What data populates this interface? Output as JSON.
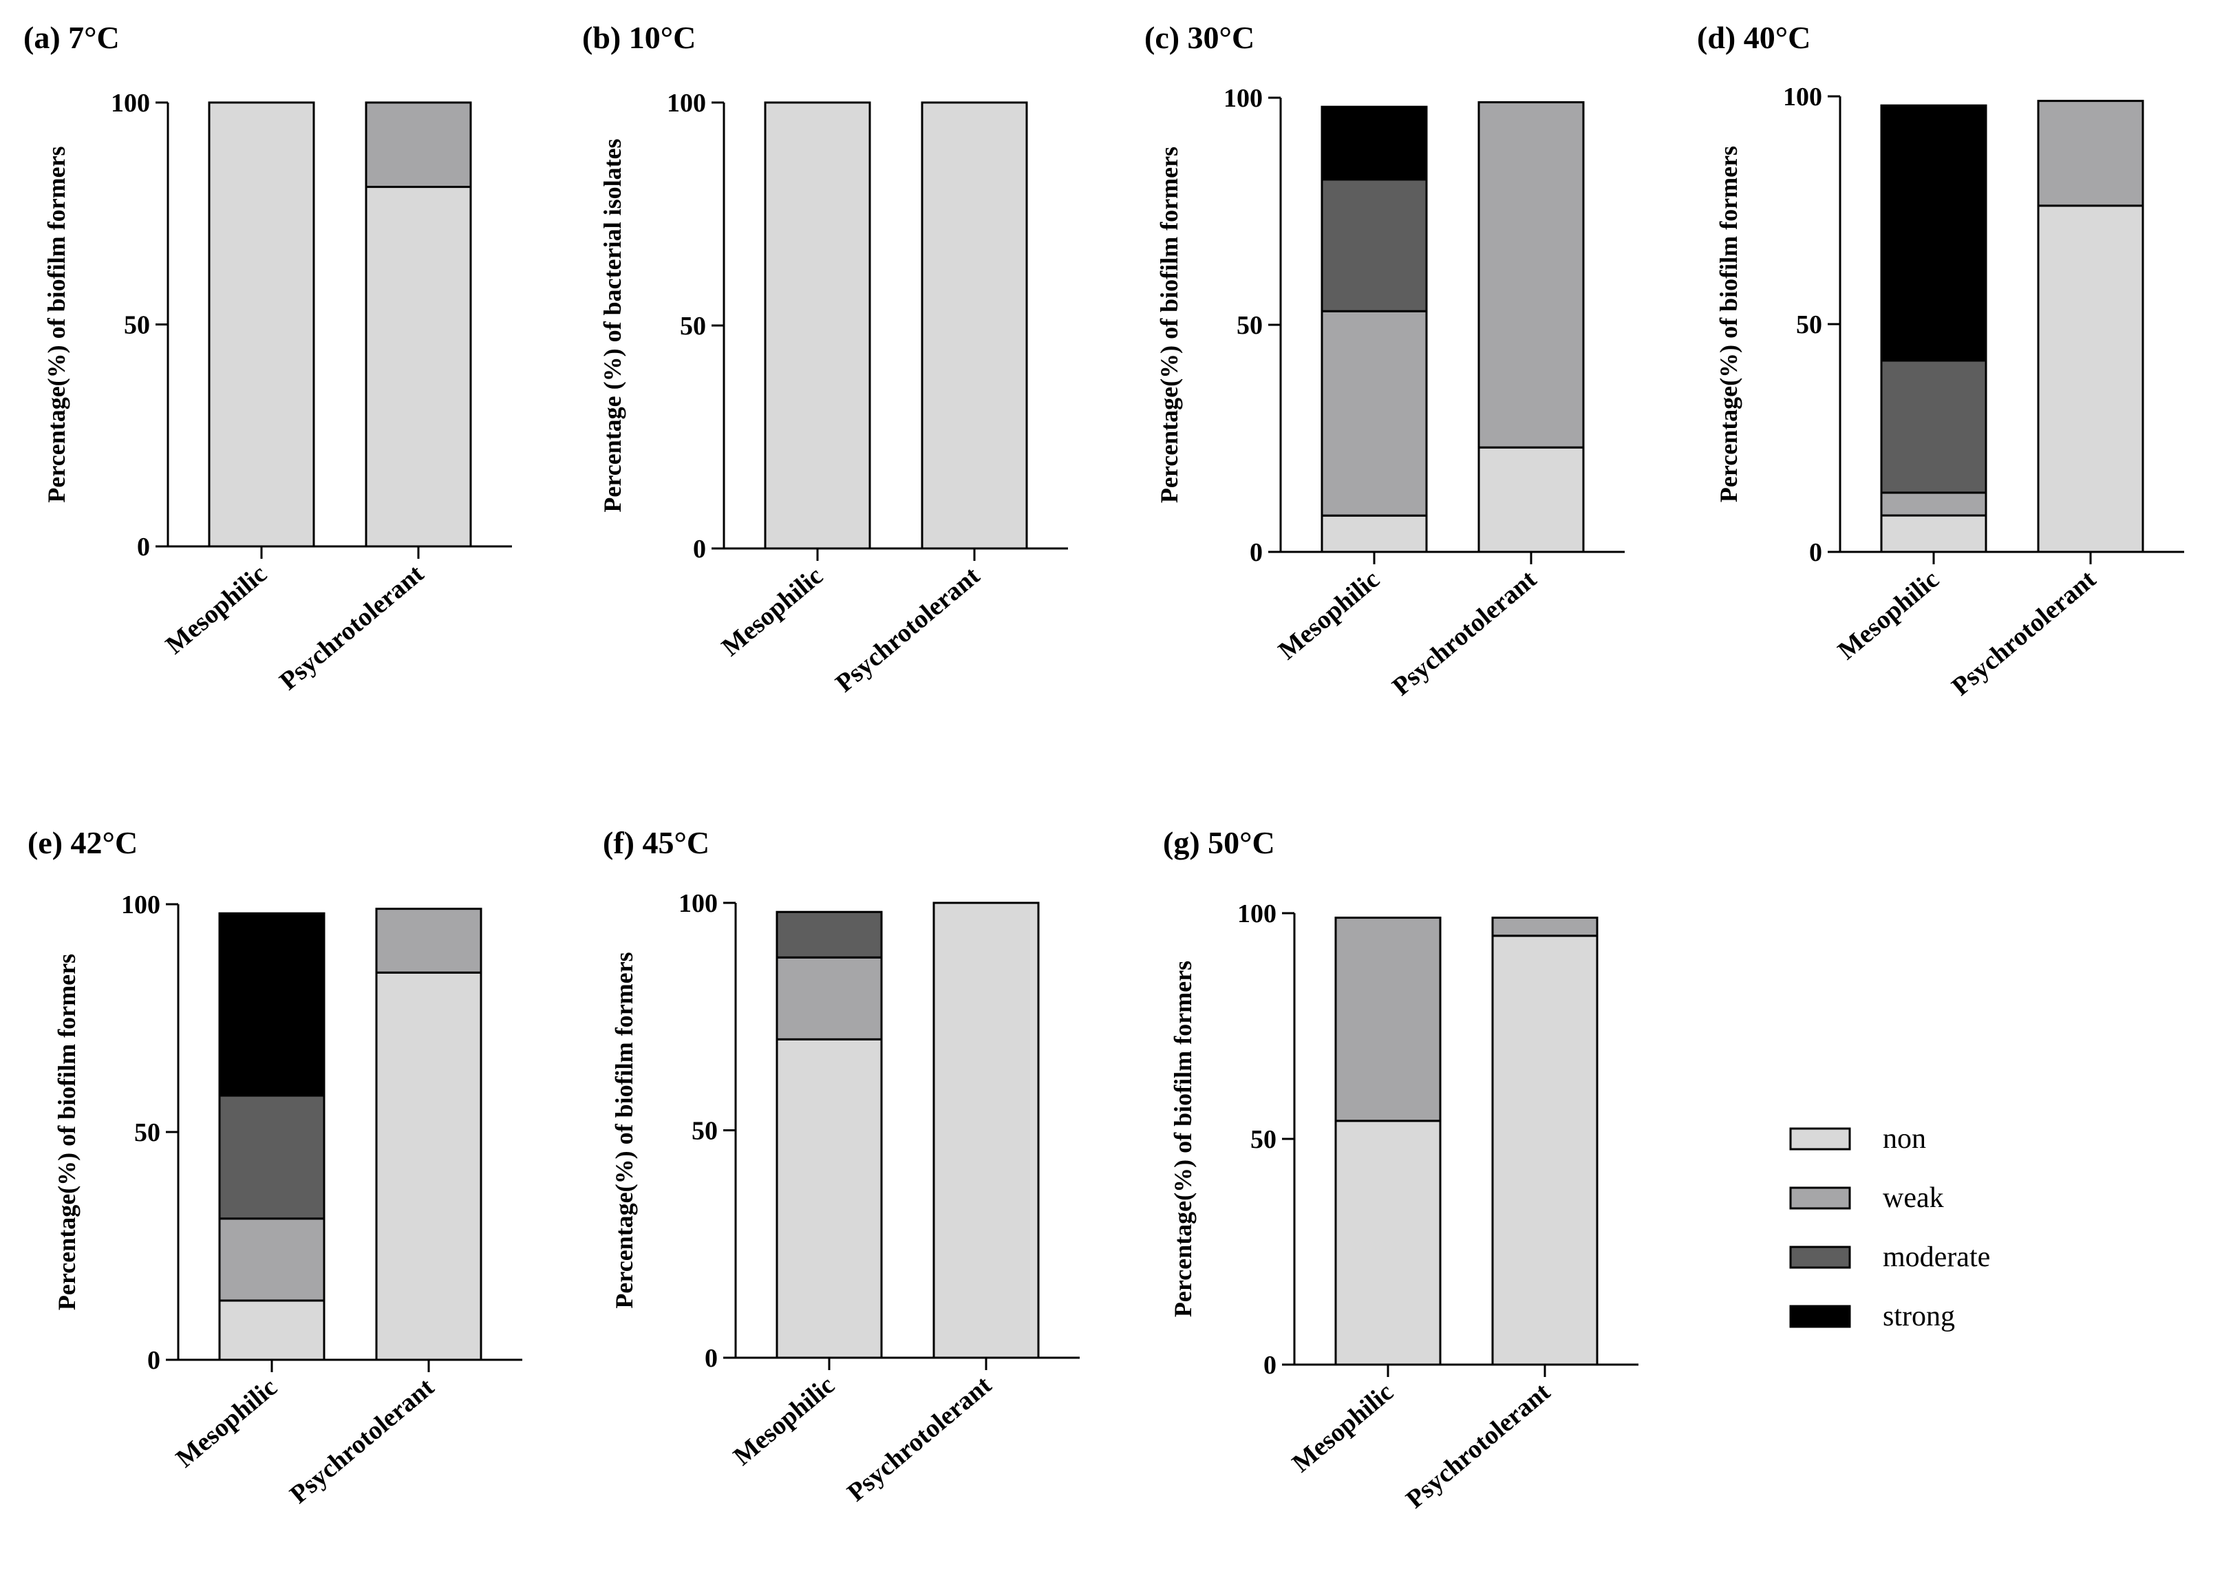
{
  "figure": {
    "legend": {
      "placement": "right",
      "entries": [
        {
          "key": "non",
          "label": "non",
          "color": "#d9d9d9"
        },
        {
          "key": "weak",
          "label": "weak",
          "color": "#a6a6a8"
        },
        {
          "key": "moderate",
          "label": "moderate",
          "color": "#5e5e5e"
        },
        {
          "key": "strong",
          "label": "strong",
          "color": "#000000"
        }
      ]
    }
  },
  "chart_data": [
    {
      "type": "bar",
      "stacked": true,
      "title": "(a) 7°C",
      "ylabel": "Percentage(%) of biofilm formers",
      "categories": [
        "Mesophilic",
        "Psychrotolerant"
      ],
      "ylim": [
        0,
        100
      ],
      "yticks": [
        0,
        50,
        100
      ],
      "series": [
        {
          "key": "non",
          "values": [
            100,
            81
          ]
        },
        {
          "key": "weak",
          "values": [
            0,
            19
          ]
        }
      ]
    },
    {
      "type": "bar",
      "stacked": true,
      "title": "(b) 10°C",
      "ylabel": "Percentage (%) of bacterial isolates",
      "categories": [
        "Mesophilic",
        "Psychrotolerant"
      ],
      "ylim": [
        0,
        100
      ],
      "yticks": [
        0,
        50,
        100
      ],
      "series": [
        {
          "key": "non",
          "values": [
            100,
            100
          ]
        }
      ]
    },
    {
      "type": "bar",
      "stacked": true,
      "title": "(c) 30°C",
      "ylabel": "Percentage(%) of biofilm formers",
      "categories": [
        "Mesophilic",
        "Psychrotolerant"
      ],
      "ylim": [
        0,
        100
      ],
      "yticks": [
        0,
        50,
        100
      ],
      "series": [
        {
          "key": "non",
          "values": [
            8,
            23
          ]
        },
        {
          "key": "weak",
          "values": [
            45,
            76
          ]
        },
        {
          "key": "moderate",
          "values": [
            29,
            0
          ]
        },
        {
          "key": "strong",
          "values": [
            16,
            0
          ]
        }
      ]
    },
    {
      "type": "bar",
      "stacked": true,
      "title": "(d) 40°C",
      "ylabel": "Percentage(%) of biofilm formers",
      "categories": [
        "Mesophilic",
        "Psychrotolerant"
      ],
      "ylim": [
        0,
        100
      ],
      "yticks": [
        0,
        50,
        100
      ],
      "series": [
        {
          "key": "non",
          "values": [
            8,
            76
          ]
        },
        {
          "key": "weak",
          "values": [
            5,
            23
          ]
        },
        {
          "key": "moderate",
          "values": [
            29,
            0
          ]
        },
        {
          "key": "strong",
          "values": [
            56,
            0
          ]
        }
      ]
    },
    {
      "type": "bar",
      "stacked": true,
      "title": "(e) 42°C",
      "ylabel": "Percentage(%) of biofilm formers",
      "categories": [
        "Mesophilic",
        "Psychrotolerant"
      ],
      "ylim": [
        0,
        100
      ],
      "yticks": [
        0,
        50,
        100
      ],
      "series": [
        {
          "key": "non",
          "values": [
            13,
            85
          ]
        },
        {
          "key": "weak",
          "values": [
            18,
            14
          ]
        },
        {
          "key": "moderate",
          "values": [
            27,
            0
          ]
        },
        {
          "key": "strong",
          "values": [
            40,
            0
          ]
        }
      ]
    },
    {
      "type": "bar",
      "stacked": true,
      "title": "(f) 45°C",
      "ylabel": "Percentage(%) of biofilm formers",
      "categories": [
        "Mesophilic",
        "Psychrotolerant"
      ],
      "ylim": [
        0,
        100
      ],
      "yticks": [
        0,
        50,
        100
      ],
      "series": [
        {
          "key": "non",
          "values": [
            70,
            100
          ]
        },
        {
          "key": "weak",
          "values": [
            18,
            0
          ]
        },
        {
          "key": "moderate",
          "values": [
            10,
            0
          ]
        }
      ]
    },
    {
      "type": "bar",
      "stacked": true,
      "title": "(g) 50°C",
      "ylabel": "Percentage(%) of biofilm formers",
      "categories": [
        "Mesophilic",
        "Psychrotolerant"
      ],
      "ylim": [
        0,
        100
      ],
      "yticks": [
        0,
        50,
        100
      ],
      "series": [
        {
          "key": "non",
          "values": [
            54,
            95
          ]
        },
        {
          "key": "weak",
          "values": [
            45,
            4
          ]
        }
      ]
    }
  ]
}
